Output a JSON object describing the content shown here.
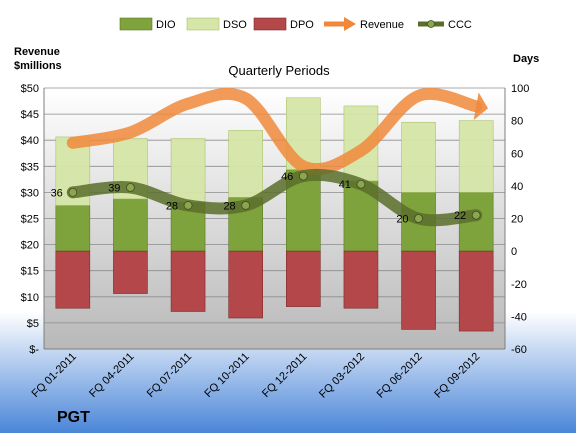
{
  "company": "PGT",
  "chart_data": {
    "type": "bar",
    "title": "Quarterly Periods",
    "left_axis_title_line1": "Revenue",
    "left_axis_title_line2": "$millions",
    "right_axis_title": "Days",
    "categories": [
      "FQ 01-2011",
      "FQ 04-2011",
      "FQ 07-2011",
      "FQ 10-2011",
      "FQ 12-2011",
      "FQ 03-2012",
      "FQ 06-2012",
      "FQ 09-2012"
    ],
    "left_ylim": [
      0,
      50
    ],
    "left_ticks": [
      0,
      5,
      10,
      15,
      20,
      25,
      30,
      35,
      40,
      45,
      50
    ],
    "left_tick_labels": [
      "$-",
      "$5",
      "$10",
      "$15",
      "$20",
      "$25",
      "$30",
      "$35",
      "$40",
      "$45",
      "$50"
    ],
    "right_ylim": [
      -60,
      100
    ],
    "right_ticks": [
      -60,
      -40,
      -20,
      0,
      20,
      40,
      60,
      80,
      100
    ],
    "right_tick_labels": [
      "-60",
      "-40",
      "-20",
      "0",
      "20",
      "40",
      "60",
      "80",
      "100"
    ],
    "series": [
      {
        "name": "DIO",
        "axis": "right",
        "kind": "stacked-bar",
        "color": "#7fa33c",
        "values": [
          28,
          32,
          30,
          33,
          50,
          43,
          36,
          36
        ]
      },
      {
        "name": "DSO",
        "axis": "right",
        "kind": "stacked-bar",
        "color": "#d6e6a8",
        "values": [
          42,
          37,
          39,
          41,
          44,
          46,
          43,
          44
        ]
      },
      {
        "name": "DPO",
        "axis": "right",
        "kind": "negative-bar",
        "color": "#b3474a",
        "values": [
          -35,
          -26,
          -37,
          -41,
          -34,
          -35,
          -48,
          -49
        ]
      },
      {
        "name": "Revenue",
        "axis": "left",
        "kind": "line",
        "color": "#f0883a",
        "values": [
          39.5,
          41.5,
          47,
          48,
          35,
          38,
          48.5,
          46.5
        ]
      },
      {
        "name": "CCC",
        "axis": "right",
        "kind": "line",
        "color": "#5a6e2c",
        "values": [
          36,
          39,
          28,
          28,
          46,
          41,
          20,
          22
        ]
      }
    ],
    "ccc_labels": [
      "36",
      "39",
      "28",
      "28",
      "46",
      "41",
      "20",
      "22"
    ],
    "legend": [
      "DIO",
      "DSO",
      "DPO",
      "Revenue",
      "CCC"
    ],
    "legend_position": "top",
    "grid": true
  }
}
